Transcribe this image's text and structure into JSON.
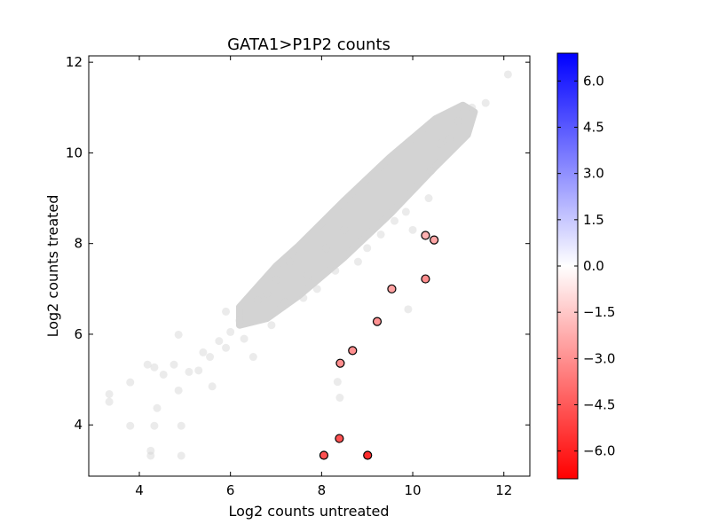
{
  "chart_data": {
    "type": "scatter",
    "title": "GATA1>P1P2 counts",
    "xlabel": "Log2 counts untreated",
    "ylabel": "Log2 counts treated",
    "xlim": [
      2.89,
      12.57
    ],
    "ylim": [
      2.87,
      12.14
    ],
    "xticks": [
      4,
      6,
      8,
      10,
      12
    ],
    "yticks": [
      4,
      6,
      8,
      10,
      12
    ],
    "grid": false,
    "background_points": {
      "color": "#d3d3d3",
      "dense_region": [
        [
          6.2,
          6.6
        ],
        [
          7.0,
          7.5
        ],
        [
          7.5,
          7.95
        ],
        [
          8.5,
          8.95
        ],
        [
          9.5,
          9.9
        ],
        [
          10.5,
          10.75
        ],
        [
          11.1,
          11.05
        ],
        [
          11.35,
          10.9
        ],
        [
          11.2,
          10.4
        ],
        [
          10.5,
          9.7
        ],
        [
          9.5,
          8.65
        ],
        [
          8.5,
          7.7
        ],
        [
          7.5,
          6.85
        ],
        [
          6.8,
          6.35
        ],
        [
          6.2,
          6.2
        ]
      ],
      "points": [
        [
          3.34,
          4.68
        ],
        [
          3.34,
          4.51
        ],
        [
          3.8,
          4.94
        ],
        [
          3.8,
          3.98
        ],
        [
          4.25,
          3.43
        ],
        [
          4.25,
          3.32
        ],
        [
          4.92,
          3.32
        ],
        [
          4.33,
          3.98
        ],
        [
          4.92,
          3.98
        ],
        [
          4.39,
          4.37
        ],
        [
          4.18,
          5.33
        ],
        [
          4.33,
          5.27
        ],
        [
          4.86,
          5.99
        ],
        [
          4.53,
          5.11
        ],
        [
          4.86,
          4.76
        ],
        [
          4.76,
          5.33
        ],
        [
          5.09,
          5.17
        ],
        [
          5.4,
          5.6
        ],
        [
          5.3,
          5.2
        ],
        [
          5.55,
          5.5
        ],
        [
          5.6,
          4.85
        ],
        [
          5.75,
          5.85
        ],
        [
          5.9,
          6.5
        ],
        [
          5.9,
          5.7
        ],
        [
          6.0,
          6.05
        ],
        [
          6.2,
          6.3
        ],
        [
          6.3,
          5.9
        ],
        [
          6.5,
          5.5
        ],
        [
          6.6,
          6.75
        ],
        [
          6.8,
          6.9
        ],
        [
          6.9,
          6.2
        ],
        [
          7.0,
          7.2
        ],
        [
          7.2,
          6.7
        ],
        [
          7.3,
          7.6
        ],
        [
          7.6,
          6.8
        ],
        [
          7.7,
          7.3
        ],
        [
          7.9,
          7.0
        ],
        [
          8.1,
          7.9
        ],
        [
          8.3,
          7.4
        ],
        [
          8.35,
          4.95
        ],
        [
          8.4,
          4.6
        ],
        [
          8.5,
          8.3
        ],
        [
          8.8,
          7.6
        ],
        [
          9.0,
          7.9
        ],
        [
          9.3,
          8.2
        ],
        [
          9.6,
          8.5
        ],
        [
          9.9,
          6.55
        ],
        [
          9.85,
          8.7
        ],
        [
          10.0,
          8.3
        ],
        [
          10.35,
          9.0
        ],
        [
          10.4,
          9.6
        ],
        [
          10.6,
          10.2
        ],
        [
          10.8,
          10.3
        ],
        [
          11.0,
          10.7
        ],
        [
          11.3,
          11.0
        ],
        [
          11.6,
          11.1
        ],
        [
          12.09,
          11.73
        ]
      ]
    },
    "highlighted_points": {
      "x": [
        10.28,
        10.47,
        10.28,
        9.54,
        9.22,
        8.68,
        8.41,
        8.39,
        8.05,
        9.01
      ],
      "y": [
        8.18,
        8.08,
        7.22,
        7.0,
        6.28,
        5.64,
        5.36,
        3.7,
        3.33,
        3.33
      ],
      "color_value": [
        -2.1,
        -2.4,
        -3.06,
        -2.54,
        -2.94,
        -3.04,
        -3.05,
        -4.69,
        -4.72,
        -5.68
      ]
    },
    "colorbar": {
      "colormap": "bwr",
      "range": [
        -6.9,
        6.9
      ],
      "ticks": [
        "6.0",
        "4.5",
        "3.0",
        "1.5",
        "0.0",
        "−1.5",
        "−3.0",
        "−4.5",
        "−6.0"
      ],
      "tick_values": [
        6.0,
        4.5,
        3.0,
        1.5,
        0.0,
        -1.5,
        -3.0,
        -4.5,
        -6.0
      ],
      "low_color": "#ff0000",
      "mid_color": "#ffffff",
      "high_color": "#0000ff"
    }
  }
}
